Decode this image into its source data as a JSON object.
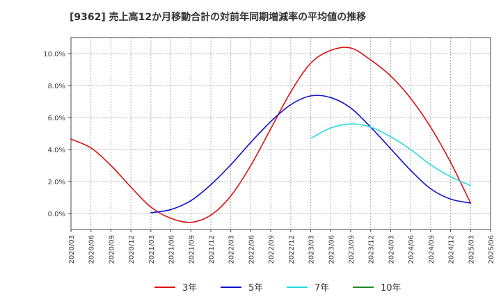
{
  "chart_data": {
    "type": "line",
    "title": "[9362]  売上高12か月移動合計の対前年同期増減率の平均値の推移",
    "xlabel": "",
    "ylabel": "",
    "x_ticks": [
      "2020/03",
      "2020/06",
      "2020/09",
      "2020/12",
      "2021/03",
      "2021/06",
      "2021/09",
      "2021/12",
      "2022/03",
      "2022/06",
      "2022/09",
      "2022/12",
      "2023/03",
      "2023/06",
      "2023/09",
      "2023/12",
      "2024/03",
      "2024/06",
      "2024/09",
      "2024/12",
      "2025/03",
      "2025/06"
    ],
    "y_ticks": [
      "0.0%",
      "2.0%",
      "4.0%",
      "6.0%",
      "8.0%",
      "10.0%"
    ],
    "ylim": [
      -1.0,
      11.0
    ],
    "y_unit": "%",
    "grid": true,
    "legend_position": "bottom",
    "series": [
      {
        "name": "3年",
        "color": "#dd1111",
        "x": [
          "2020/03",
          "2020/06",
          "2020/09",
          "2020/12",
          "2021/03",
          "2021/06",
          "2021/09",
          "2021/12",
          "2022/03",
          "2022/06",
          "2022/09",
          "2022/12",
          "2023/03",
          "2023/06",
          "2023/09",
          "2023/12",
          "2024/03",
          "2024/06",
          "2024/09",
          "2024/12",
          "2025/03"
        ],
        "values": [
          4.65,
          4.1,
          3.0,
          1.65,
          0.4,
          -0.3,
          -0.55,
          -0.1,
          1.1,
          3.0,
          5.3,
          7.6,
          9.4,
          10.2,
          10.35,
          9.6,
          8.6,
          7.2,
          5.4,
          3.2,
          0.65
        ]
      },
      {
        "name": "5年",
        "color": "#1111cc",
        "x": [
          "2021/03",
          "2021/06",
          "2021/09",
          "2021/12",
          "2022/03",
          "2022/06",
          "2022/09",
          "2022/12",
          "2023/03",
          "2023/06",
          "2023/09",
          "2023/12",
          "2024/03",
          "2024/06",
          "2024/09",
          "2024/12",
          "2025/03"
        ],
        "values": [
          0.05,
          0.25,
          0.8,
          1.8,
          3.05,
          4.45,
          5.75,
          6.8,
          7.35,
          7.25,
          6.6,
          5.4,
          4.05,
          2.7,
          1.55,
          0.9,
          0.65
        ]
      },
      {
        "name": "7年",
        "color": "#22dddd",
        "x": [
          "2023/03",
          "2023/06",
          "2023/09",
          "2023/12",
          "2024/03",
          "2024/06",
          "2024/09",
          "2024/12",
          "2025/03"
        ],
        "values": [
          4.7,
          5.35,
          5.6,
          5.4,
          4.8,
          4.0,
          3.05,
          2.3,
          1.75
        ]
      },
      {
        "name": "10年",
        "color": "#228822",
        "x": [],
        "values": []
      }
    ]
  }
}
